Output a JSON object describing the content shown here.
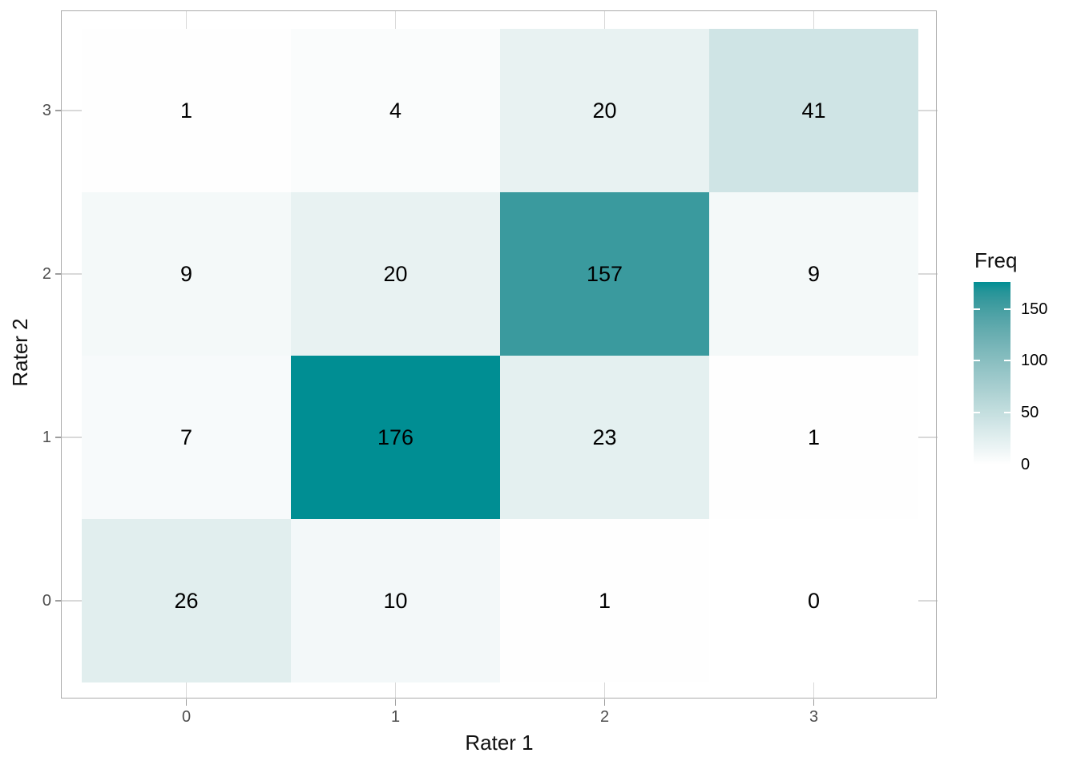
{
  "chart_data": {
    "type": "heatmap",
    "title": "",
    "xlabel": "Rater 1",
    "ylabel": "Rater 2",
    "x_categories": [
      "0",
      "1",
      "2",
      "3"
    ],
    "y_categories_bottom_to_top": [
      "0",
      "1",
      "2",
      "3"
    ],
    "rows_top_to_bottom": [
      {
        "y": "3",
        "values": [
          1,
          4,
          20,
          41
        ]
      },
      {
        "y": "2",
        "values": [
          9,
          20,
          157,
          9
        ]
      },
      {
        "y": "1",
        "values": [
          7,
          176,
          23,
          1
        ]
      },
      {
        "y": "0",
        "values": [
          26,
          10,
          1,
          0
        ]
      }
    ],
    "legend": {
      "title": "Freq",
      "position": "right",
      "min": 0,
      "max": 176,
      "tick_values": [
        0,
        50,
        100,
        150
      ],
      "tick_labels": [
        "0",
        "50",
        "100",
        "150"
      ],
      "low_color": "#FFFFFF",
      "high_color": "#008E93"
    },
    "grid": true,
    "panel_border": true,
    "value_label_color": "#000000"
  }
}
